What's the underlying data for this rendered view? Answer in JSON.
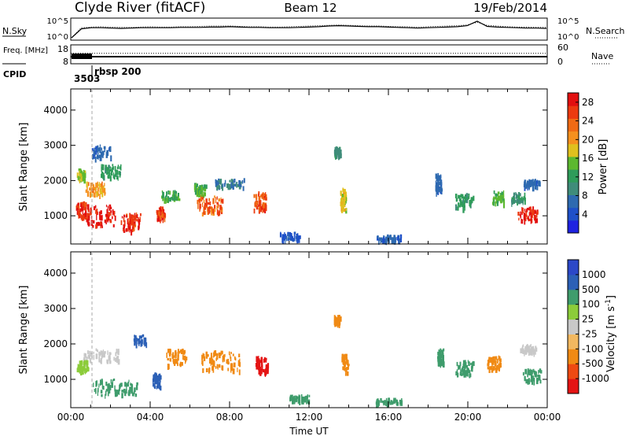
{
  "header": {
    "station": "Clyde River (fitACF)",
    "beam": "Beam 12",
    "date": "19/Feb/2014"
  },
  "chart_data": [
    {
      "type": "line",
      "panel": "noise",
      "left_label": "N.Sky",
      "right_label": "N.Search",
      "left_ticks": [
        "10^5",
        "10^0"
      ],
      "right_ticks": [
        "10^5",
        "10^0"
      ],
      "series": [
        {
          "name": "N.Sky",
          "style": "solid",
          "values_log10": [
            0.0,
            2.6,
            2.9,
            2.9,
            2.8,
            2.7,
            2.8,
            2.9,
            2.9,
            2.9,
            2.9,
            3.0,
            3.0,
            3.0,
            3.1,
            3.1,
            3.2,
            3.1,
            3.0,
            3.0,
            2.9,
            2.9,
            2.9,
            3.0,
            3.1,
            3.2,
            3.4,
            3.5,
            3.4,
            3.3,
            3.2,
            3.2,
            3.1,
            3.0,
            2.9,
            2.8,
            2.9,
            3.0,
            3.1,
            3.2,
            3.5,
            4.8,
            3.3,
            3.1,
            3.0,
            2.9,
            2.8,
            2.8,
            2.7
          ]
        },
        {
          "name": "N.Search",
          "style": "dotted",
          "values_log10": [
            0.0,
            2.9,
            3.1,
            3.2,
            3.1,
            3.0,
            3.0,
            3.1,
            3.2,
            3.1,
            3.1,
            3.2,
            3.2,
            3.3,
            3.4,
            3.4,
            3.4,
            3.3,
            3.2,
            3.2,
            3.1,
            3.1,
            3.2,
            3.3,
            3.4,
            3.5,
            3.6,
            3.7,
            3.6,
            3.5,
            3.4,
            3.4,
            3.3,
            3.2,
            3.2,
            3.1,
            3.2,
            3.3,
            3.4,
            3.5,
            3.7,
            4.5,
            3.6,
            3.4,
            3.2,
            3.1,
            3.1,
            3.0,
            3.0
          ]
        }
      ]
    },
    {
      "type": "line",
      "panel": "frequency",
      "left_label": "Freq. [MHz]",
      "right_label": "Nave",
      "left_ticks": [
        "18",
        "8"
      ],
      "right_ticks": [
        "60",
        "0"
      ],
      "series": [
        {
          "name": "Freq.",
          "style": "solid",
          "x": [
            0,
            24
          ],
          "y": [
            11.5,
            11.5
          ]
        },
        {
          "name": "Nave",
          "style": "dotted",
          "x": [
            0,
            24
          ],
          "y": [
            33,
            33
          ]
        }
      ]
    },
    {
      "type": "text",
      "panel": "cpid",
      "label": "CPID",
      "entries": [
        "3503",
        "rbsp 200"
      ]
    },
    {
      "type": "heatmap",
      "panel": "power",
      "xlabel": "",
      "ylabel": "Slant Range [km]",
      "xlim": [
        0,
        24
      ],
      "ylim": [
        200,
        4600
      ],
      "yticks": [
        "1000",
        "2000",
        "3000",
        "4000"
      ],
      "colorbar": {
        "label": "Power [dB]",
        "ticks": [
          "4",
          "8",
          "12",
          "16",
          "20",
          "24",
          "28"
        ],
        "range": [
          0,
          30
        ]
      },
      "blobs": [
        {
          "x": 1.5,
          "y": 1050,
          "w": 1.5,
          "h": 650,
          "v": 29
        },
        {
          "x": 0.5,
          "y": 1200,
          "w": 0.5,
          "h": 450,
          "v": 27
        },
        {
          "x": 3.0,
          "y": 850,
          "w": 1.0,
          "h": 500,
          "v": 27
        },
        {
          "x": 1.2,
          "y": 1800,
          "w": 1.0,
          "h": 350,
          "v": 20
        },
        {
          "x": 2.0,
          "y": 2300,
          "w": 1.0,
          "h": 350,
          "v": 12
        },
        {
          "x": 1.5,
          "y": 2850,
          "w": 1.0,
          "h": 350,
          "v": 6
        },
        {
          "x": 0.5,
          "y": 2200,
          "w": 0.4,
          "h": 300,
          "v": 16
        },
        {
          "x": 5.0,
          "y": 1600,
          "w": 0.9,
          "h": 280,
          "v": 13
        },
        {
          "x": 4.5,
          "y": 1100,
          "w": 0.4,
          "h": 350,
          "v": 26
        },
        {
          "x": 7.0,
          "y": 1350,
          "w": 1.3,
          "h": 500,
          "v": 24
        },
        {
          "x": 9.5,
          "y": 1450,
          "w": 0.6,
          "h": 500,
          "v": 25
        },
        {
          "x": 8.0,
          "y": 1950,
          "w": 1.5,
          "h": 250,
          "v": 8
        },
        {
          "x": 6.5,
          "y": 1800,
          "w": 0.6,
          "h": 280,
          "v": 14
        },
        {
          "x": 13.7,
          "y": 1500,
          "w": 0.3,
          "h": 600,
          "v": 18
        },
        {
          "x": 13.4,
          "y": 2850,
          "w": 0.3,
          "h": 250,
          "v": 10
        },
        {
          "x": 16.0,
          "y": 400,
          "w": 1.2,
          "h": 150,
          "v": 6
        },
        {
          "x": 11.0,
          "y": 450,
          "w": 1.0,
          "h": 200,
          "v": 5
        },
        {
          "x": 18.5,
          "y": 1950,
          "w": 0.3,
          "h": 550,
          "v": 6
        },
        {
          "x": 19.8,
          "y": 1450,
          "w": 0.9,
          "h": 400,
          "v": 12
        },
        {
          "x": 21.5,
          "y": 1550,
          "w": 0.6,
          "h": 350,
          "v": 14
        },
        {
          "x": 23.0,
          "y": 1100,
          "w": 1.0,
          "h": 400,
          "v": 28
        },
        {
          "x": 22.5,
          "y": 1550,
          "w": 0.7,
          "h": 250,
          "v": 11
        },
        {
          "x": 23.2,
          "y": 1950,
          "w": 0.8,
          "h": 200,
          "v": 6
        }
      ]
    },
    {
      "type": "heatmap",
      "panel": "velocity",
      "xlabel": "Time UT",
      "ylabel": "Slant Range [km]",
      "xlim": [
        0,
        24
      ],
      "ylim": [
        200,
        4600
      ],
      "xticks": [
        "00:00",
        "04:00",
        "08:00",
        "12:00",
        "16:00",
        "20:00",
        "00:00"
      ],
      "yticks": [
        "1000",
        "2000",
        "3000",
        "4000"
      ],
      "colorbar": {
        "label": "Velocity [m s-1]",
        "ticks": [
          "1000",
          "500",
          "100",
          "25",
          "-25",
          "-100",
          "-500",
          "-1000"
        ],
        "range": [
          -1000,
          1000
        ]
      },
      "blobs": [
        {
          "x": 2.2,
          "y": 800,
          "w": 2.2,
          "h": 450,
          "v": 400
        },
        {
          "x": 1.5,
          "y": 1700,
          "w": 1.8,
          "h": 350,
          "v": 20
        },
        {
          "x": 3.5,
          "y": 2150,
          "w": 0.7,
          "h": 250,
          "v": 1000
        },
        {
          "x": 0.6,
          "y": 1400,
          "w": 0.6,
          "h": 300,
          "v": 80
        },
        {
          "x": 4.3,
          "y": 1000,
          "w": 0.4,
          "h": 400,
          "v": 900
        },
        {
          "x": 5.3,
          "y": 1650,
          "w": 1.0,
          "h": 450,
          "v": -150
        },
        {
          "x": 7.5,
          "y": 1550,
          "w": 2.0,
          "h": 550,
          "v": -200
        },
        {
          "x": 9.6,
          "y": 1450,
          "w": 0.6,
          "h": 500,
          "v": -700
        },
        {
          "x": 13.8,
          "y": 1450,
          "w": 0.35,
          "h": 550,
          "v": -200
        },
        {
          "x": 13.4,
          "y": 2700,
          "w": 0.3,
          "h": 250,
          "v": -150
        },
        {
          "x": 16.0,
          "y": 420,
          "w": 1.3,
          "h": 140,
          "v": 120
        },
        {
          "x": 11.5,
          "y": 500,
          "w": 1.0,
          "h": 160,
          "v": 130
        },
        {
          "x": 18.6,
          "y": 1700,
          "w": 0.3,
          "h": 400,
          "v": 300
        },
        {
          "x": 19.8,
          "y": 1350,
          "w": 0.9,
          "h": 400,
          "v": 350
        },
        {
          "x": 21.3,
          "y": 1500,
          "w": 0.7,
          "h": 350,
          "v": -150
        },
        {
          "x": 23.2,
          "y": 1150,
          "w": 0.9,
          "h": 350,
          "v": 400
        },
        {
          "x": 23.0,
          "y": 1900,
          "w": 0.8,
          "h": 200,
          "v": 0
        }
      ]
    }
  ]
}
